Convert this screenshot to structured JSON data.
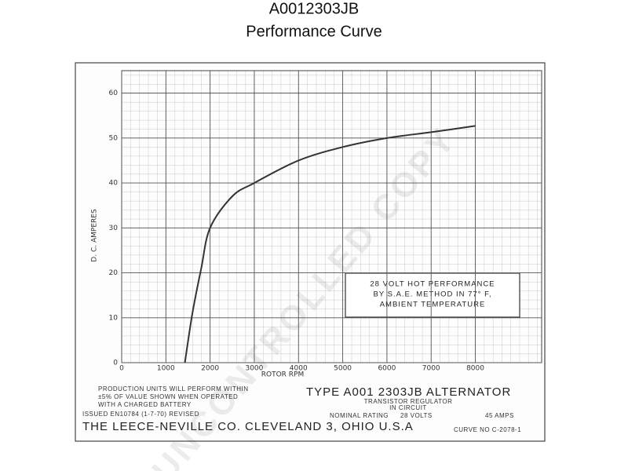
{
  "chart_data": {
    "type": "line",
    "title": "A0012303JB",
    "subtitle": "Performance Curve",
    "x_label": "ROTOR RPM",
    "y_label": "D. C. AMPERES",
    "x": [
      1430,
      1600,
      1800,
      2000,
      2500,
      3000,
      4000,
      5000,
      6000,
      7000,
      8000
    ],
    "values": [
      0,
      11,
      21,
      30,
      37,
      40,
      45,
      48,
      50,
      51.3,
      52.7
    ],
    "color": "#333333",
    "xlim": [
      0,
      9500
    ],
    "xticks": [
      0,
      1000,
      2000,
      3000,
      4000,
      5000,
      6000,
      7000,
      8000
    ],
    "ylim": [
      0,
      65
    ],
    "yticks": [
      0,
      10,
      20,
      30,
      40,
      50,
      60
    ],
    "grid": true,
    "annotation": [
      "28 VOLT HOT PERFORMANCE",
      "BY S.A.E. METHOD IN 77° F,",
      "AMBIENT TEMPERATURE"
    ],
    "footer": {
      "production": [
        "PRODUCTION UNITS WILL PERFORM WITHIN",
        "±5% OF VALUE SHOWN WHEN OPERATED",
        "WITH A  CHARGED  BATTERY"
      ],
      "issued": "ISSUED EN10784 (1-7-70) REVISED",
      "type_line": "TYPE A001 2303JB ALTERNATOR",
      "regulator": [
        "TRANSISTOR REGULATOR",
        "IN CIRCUIT"
      ],
      "rating": "NOMINAL RATING",
      "volts": "28 VOLTS",
      "amps": "45 AMPS",
      "company": "THE LEECE-NEVILLE CO. CLEVELAND 3, OHIO U.S.A",
      "curve_no": "CURVE NO C-2078-1"
    },
    "watermark": "UNCONTROLLED COPY"
  }
}
